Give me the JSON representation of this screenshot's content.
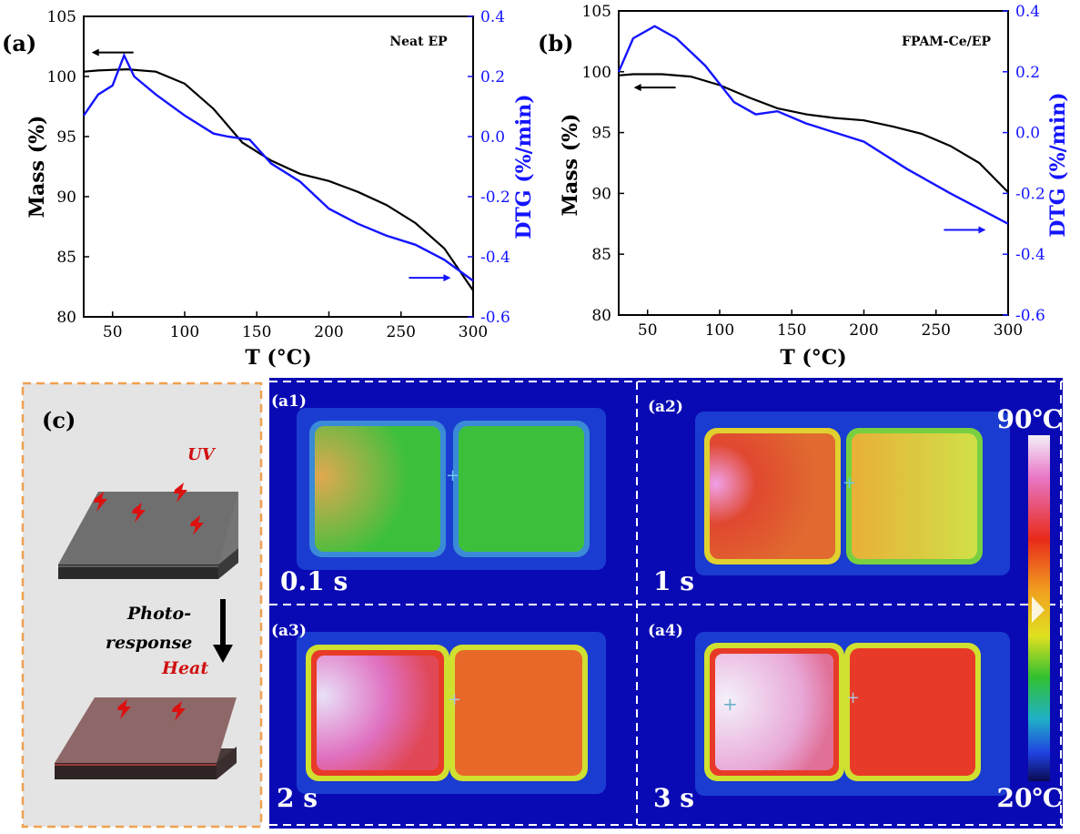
{
  "panel_labels": {
    "a": "(a)",
    "b": "(b)",
    "c": "(c)"
  },
  "chart_data": [
    {
      "id": "a",
      "type": "line",
      "title": "Neat EP",
      "xlabel": "T (°C)",
      "ylabel": "Mass (%)",
      "y2label": "DTG (%/min)",
      "xlim": [
        30,
        300
      ],
      "ylim": [
        80,
        105
      ],
      "y2lim": [
        -0.6,
        0.4
      ],
      "xticks": [
        50,
        100,
        150,
        200,
        250,
        300
      ],
      "yticks": [
        80,
        85,
        90,
        95,
        100,
        105
      ],
      "y2ticks": [
        -0.6,
        -0.4,
        -0.2,
        0.0,
        0.2,
        0.4
      ],
      "xtick_labels": [
        "50",
        "100",
        "150",
        "200",
        "250",
        "300"
      ],
      "ytick_labels": [
        "80",
        "85",
        "90",
        "95",
        "100",
        "105"
      ],
      "y2tick_labels": [
        "-0.6",
        "-0.4",
        "-0.2",
        "0.0",
        "0.2",
        "0.4"
      ],
      "colors": {
        "mass": "#000000",
        "dtg": "#1414ff"
      },
      "series": [
        {
          "name": "Mass",
          "axis": "left",
          "color": "#000000",
          "x": [
            30,
            40,
            60,
            80,
            100,
            120,
            140,
            160,
            180,
            200,
            220,
            240,
            260,
            280,
            300
          ],
          "y": [
            100.4,
            100.5,
            100.6,
            100.4,
            99.4,
            97.3,
            94.5,
            93.0,
            91.9,
            91.3,
            90.4,
            89.3,
            87.8,
            85.7,
            82.2
          ]
        },
        {
          "name": "DTG",
          "axis": "right",
          "color": "#1414ff",
          "x": [
            30,
            40,
            50,
            58,
            65,
            80,
            100,
            120,
            130,
            145,
            160,
            180,
            200,
            220,
            240,
            260,
            280,
            300
          ],
          "y": [
            0.07,
            0.14,
            0.17,
            0.27,
            0.2,
            0.14,
            0.07,
            0.01,
            0.0,
            -0.01,
            -0.09,
            -0.15,
            -0.24,
            -0.29,
            -0.33,
            -0.36,
            -0.41,
            -0.48
          ]
        }
      ],
      "annotations": [
        {
          "type": "arrow",
          "direction": "left",
          "points_to": "Mass",
          "at": [
            50,
            102.0
          ]
        },
        {
          "type": "arrow",
          "direction": "right",
          "points_to": "DTG",
          "at": [
            270,
            -0.47
          ]
        }
      ]
    },
    {
      "id": "b",
      "type": "line",
      "title": "FPAM-Ce/EP",
      "xlabel": "T (°C)",
      "ylabel": "Mass (%)",
      "y2label": "DTG (%/min)",
      "xlim": [
        30,
        300
      ],
      "ylim": [
        80,
        105
      ],
      "y2lim": [
        -0.6,
        0.4
      ],
      "xticks": [
        50,
        100,
        150,
        200,
        250,
        300
      ],
      "yticks": [
        80,
        85,
        90,
        95,
        100,
        105
      ],
      "y2ticks": [
        -0.6,
        -0.4,
        -0.2,
        0.0,
        0.2,
        0.4
      ],
      "xtick_labels": [
        "50",
        "100",
        "150",
        "200",
        "250",
        "300"
      ],
      "ytick_labels": [
        "80",
        "85",
        "90",
        "95",
        "100",
        "105"
      ],
      "y2tick_labels": [
        "-0.6",
        "-0.4",
        "-0.2",
        "0.0",
        "0.2",
        "0.4"
      ],
      "colors": {
        "mass": "#000000",
        "dtg": "#1414ff"
      },
      "series": [
        {
          "name": "Mass",
          "axis": "left",
          "color": "#000000",
          "x": [
            30,
            40,
            60,
            80,
            100,
            120,
            140,
            160,
            180,
            200,
            220,
            240,
            260,
            280,
            300
          ],
          "y": [
            99.7,
            99.8,
            99.8,
            99.6,
            98.9,
            97.9,
            97.0,
            96.5,
            96.2,
            96.0,
            95.5,
            94.9,
            93.9,
            92.5,
            90.1
          ]
        },
        {
          "name": "DTG",
          "axis": "right",
          "color": "#1414ff",
          "x": [
            30,
            40,
            55,
            70,
            90,
            110,
            125,
            140,
            160,
            180,
            200,
            230,
            260,
            280,
            300
          ],
          "y": [
            0.2,
            0.31,
            0.35,
            0.31,
            0.22,
            0.1,
            0.06,
            0.07,
            0.03,
            0.0,
            -0.03,
            -0.12,
            -0.2,
            -0.25,
            -0.3
          ]
        }
      ],
      "annotations": [
        {
          "type": "arrow",
          "direction": "left",
          "points_to": "Mass",
          "at": [
            55,
            98.7
          ]
        },
        {
          "type": "arrow",
          "direction": "right",
          "points_to": "DTG",
          "at": [
            270,
            -0.32
          ]
        }
      ]
    }
  ],
  "schematic": {
    "uv_label": "UV",
    "photoresponse_label_1": "Photo-",
    "photoresponse_label_2": "response",
    "heat_label": "Heat",
    "colors": {
      "background": "#e4e4e4",
      "border": "#f0a050",
      "slab_top": "#737373",
      "slab_heated": "#8a6a6a",
      "bolt": "#dd1010"
    }
  },
  "thermal": {
    "colors": {
      "background": "#0a0ab4",
      "divider": "#ffffff"
    },
    "colorbar": {
      "max_label": "90℃",
      "min_label": "20℃"
    },
    "frames": [
      {
        "label": "(a1)",
        "time": "0.1 s",
        "left_color": "#3cc03c",
        "left_hot": "#d8c050",
        "right_color": "#3cc03c"
      },
      {
        "label": "(a2)",
        "time": "1 s",
        "left_color": "#e0482a",
        "left_hot": "#ee90e0",
        "right_color": "#d8e04a"
      },
      {
        "label": "(a3)",
        "time": "2 s",
        "left_color": "#e070b0",
        "left_hot": "#e8d8f8",
        "right_color": "#e8682a"
      },
      {
        "label": "(a4)",
        "time": "3 s",
        "left_color": "#e8a8d8",
        "left_hot": "#f0e8f8",
        "right_color": "#e83a28"
      }
    ]
  }
}
